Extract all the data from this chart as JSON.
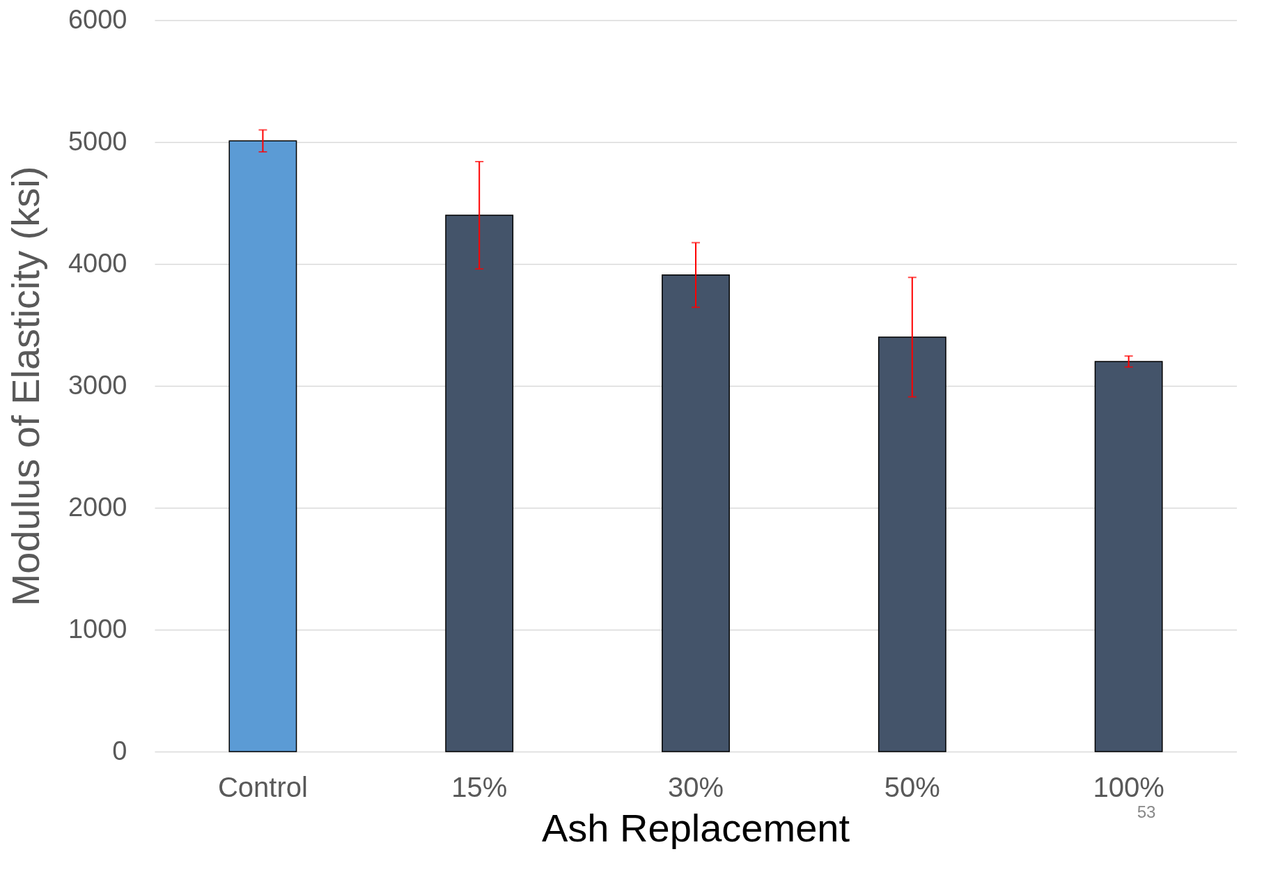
{
  "chart_data": {
    "type": "bar",
    "xlabel": "Ash Replacement",
    "ylabel": "Modulus of Elasticity (ksi)",
    "categories": [
      "Control",
      "15%",
      "30%",
      "50%",
      "100%"
    ],
    "values": [
      5010,
      4400,
      3910,
      3400,
      3200
    ],
    "errors": [
      90,
      440,
      265,
      490,
      45
    ],
    "colors": [
      "#5b9bd5",
      "#44546a",
      "#44546a",
      "#44546a",
      "#44546a"
    ],
    "ylim": [
      0,
      6000
    ],
    "yticks": [
      0,
      1000,
      2000,
      3000,
      4000,
      5000,
      6000
    ],
    "grid": "y",
    "annotations": [
      "53"
    ]
  }
}
